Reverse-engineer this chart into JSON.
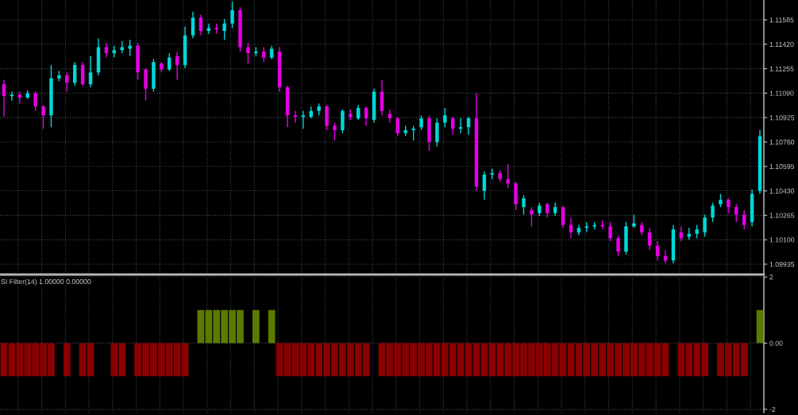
{
  "chart_data": [
    {
      "type": "candlestick",
      "categories": [
        null,
        null,
        null,
        null,
        null,
        null,
        null,
        null,
        null,
        null,
        null,
        null,
        null,
        null,
        null,
        null,
        null,
        null,
        null,
        null,
        null,
        null,
        null,
        null,
        null,
        null,
        null,
        null,
        null,
        null,
        null,
        null,
        null,
        null,
        null,
        null,
        null,
        null,
        null,
        null,
        null,
        null,
        null,
        null,
        null,
        null,
        null,
        null,
        null,
        null,
        null,
        null,
        null,
        null,
        null,
        null,
        null,
        null,
        null,
        null,
        null,
        null,
        null,
        null,
        null,
        null,
        null,
        null,
        null,
        null,
        null,
        null,
        null,
        null,
        null,
        null,
        null,
        null,
        null,
        null,
        null,
        null,
        null,
        null,
        null,
        null,
        null,
        null,
        null,
        null,
        null,
        null,
        null,
        null,
        null,
        null,
        null
      ],
      "ohlc": [
        [
          1.1115,
          1.1118,
          1.1093,
          1.1107
        ],
        [
          1.1107,
          1.111,
          1.1104,
          1.1108
        ],
        [
          1.1108,
          1.111,
          1.1102,
          1.1106
        ],
        [
          1.1106,
          1.1111,
          1.1105,
          1.1109
        ],
        [
          1.1109,
          1.111,
          1.1097,
          1.11
        ],
        [
          1.11,
          1.1101,
          1.1085,
          1.1094
        ],
        [
          1.1094,
          1.1128,
          1.1086,
          1.1119
        ],
        [
          1.1119,
          1.1124,
          1.1117,
          1.1121
        ],
        [
          1.1121,
          1.1123,
          1.111,
          1.1116
        ],
        [
          1.1116,
          1.113,
          1.1114,
          1.1128
        ],
        [
          1.1128,
          1.113,
          1.1114,
          1.1115
        ],
        [
          1.1115,
          1.1134,
          1.1113,
          1.1123
        ],
        [
          1.1123,
          1.1146,
          1.1121,
          1.114
        ],
        [
          1.114,
          1.1143,
          1.1133,
          1.1136
        ],
        [
          1.1136,
          1.1141,
          1.1133,
          1.1138
        ],
        [
          1.1138,
          1.1144,
          1.1136,
          1.114
        ],
        [
          1.1139,
          1.1145,
          1.1134,
          1.1141
        ],
        [
          1.1141,
          1.1143,
          1.1118,
          1.1123
        ],
        [
          1.1125,
          1.1126,
          1.1104,
          1.1112
        ],
        [
          1.1112,
          1.1132,
          1.111,
          1.113
        ],
        [
          1.1129,
          1.113,
          1.1123,
          1.1125
        ],
        [
          1.1125,
          1.1136,
          1.1124,
          1.1133
        ],
        [
          1.1134,
          1.1137,
          1.1118,
          1.1128
        ],
        [
          1.1128,
          1.1154,
          1.1126,
          1.1148
        ],
        [
          1.1148,
          1.1164,
          1.1146,
          1.116
        ],
        [
          1.116,
          1.1162,
          1.1148,
          1.1151
        ],
        [
          1.1151,
          1.1156,
          1.1149,
          1.1153
        ],
        [
          1.1153,
          1.1156,
          1.1149,
          1.1152
        ],
        [
          1.1151,
          1.1159,
          1.1145,
          1.1156
        ],
        [
          1.1156,
          1.1171,
          1.1153,
          1.1165
        ],
        [
          1.1165,
          1.1167,
          1.1137,
          1.114
        ],
        [
          1.114,
          1.1143,
          1.1129,
          1.1136
        ],
        [
          1.1136,
          1.114,
          1.1134,
          1.1137
        ],
        [
          1.1137,
          1.114,
          1.113,
          1.1133
        ],
        [
          1.1133,
          1.1141,
          1.1132,
          1.1139
        ],
        [
          1.1137,
          1.114,
          1.111,
          1.1113
        ],
        [
          1.1113,
          1.1114,
          1.1086,
          1.1094
        ],
        [
          1.1094,
          1.1097,
          1.1089,
          1.1093
        ],
        [
          1.1093,
          1.1097,
          1.1085,
          1.1094
        ],
        [
          1.1093,
          1.11,
          1.1092,
          1.1097
        ],
        [
          1.1097,
          1.1102,
          1.1094,
          1.11
        ],
        [
          1.11,
          1.1101,
          1.1084,
          1.1087
        ],
        [
          1.1087,
          1.1089,
          1.1077,
          1.1084
        ],
        [
          1.1084,
          1.1098,
          1.1082,
          1.1097
        ],
        [
          1.1095,
          1.1098,
          1.1091,
          1.1093
        ],
        [
          1.1092,
          1.1101,
          1.1091,
          1.1099
        ],
        [
          1.1099,
          1.11,
          1.1087,
          1.1092
        ],
        [
          1.1091,
          1.1112,
          1.1089,
          1.111
        ],
        [
          1.111,
          1.1118,
          1.1094,
          1.1097
        ],
        [
          1.1095,
          1.1098,
          1.1089,
          1.1092
        ],
        [
          1.1092,
          1.1093,
          1.108,
          1.1082
        ],
        [
          1.1082,
          1.1087,
          1.108,
          1.1084
        ],
        [
          1.1084,
          1.1087,
          1.1077,
          1.1085
        ],
        [
          1.1086,
          1.1094,
          1.1084,
          1.1092
        ],
        [
          1.1092,
          1.1094,
          1.107,
          1.1076
        ],
        [
          1.1076,
          1.1092,
          1.1073,
          1.1089
        ],
        [
          1.1089,
          1.1099,
          1.1086,
          1.1094
        ],
        [
          1.1092,
          1.1093,
          1.1081,
          1.1085
        ],
        [
          1.1085,
          1.1092,
          1.1082,
          1.1086
        ],
        [
          1.1086,
          1.1093,
          1.1081,
          1.1092
        ],
        [
          1.1092,
          1.1109,
          1.1043,
          1.1046
        ],
        [
          1.1043,
          1.1056,
          1.1037,
          1.1054
        ],
        [
          1.1054,
          1.1058,
          1.1051,
          1.1055
        ],
        [
          1.1055,
          1.1057,
          1.1049,
          1.1051
        ],
        [
          1.1051,
          1.1061,
          1.1045,
          1.1048
        ],
        [
          1.1048,
          1.1049,
          1.103,
          1.1034
        ],
        [
          1.1032,
          1.104,
          1.1027,
          1.1038
        ],
        [
          1.103,
          1.1032,
          1.1019,
          1.1027
        ],
        [
          1.1028,
          1.1035,
          1.1026,
          1.1033
        ],
        [
          1.1034,
          1.1035,
          1.1025,
          1.1028
        ],
        [
          1.1028,
          1.1035,
          1.1026,
          1.1032
        ],
        [
          1.1032,
          1.1033,
          1.1018,
          1.102
        ],
        [
          1.102,
          1.1025,
          1.1011,
          1.1015
        ],
        [
          1.1015,
          1.102,
          1.1013,
          1.1018
        ],
        [
          1.1018,
          1.1022,
          1.1015,
          1.1019
        ],
        [
          1.1019,
          1.1022,
          1.1017,
          1.102
        ],
        [
          1.102,
          1.1023,
          1.1017,
          1.1019
        ],
        [
          1.1019,
          1.1022,
          1.1009,
          1.1011
        ],
        [
          1.1011,
          1.1013,
          1.0999,
          1.1002
        ],
        [
          1.1002,
          1.1022,
          1.1,
          1.1019
        ],
        [
          1.1019,
          1.1027,
          1.1018,
          1.1021
        ],
        [
          1.102,
          1.1022,
          1.1013,
          1.1015
        ],
        [
          1.1015,
          1.1018,
          1.1003,
          1.1006
        ],
        [
          1.1006,
          1.1009,
          1.0996,
          1.0999
        ],
        [
          1.0999,
          1.1003,
          1.0994,
          1.0996
        ],
        [
          1.0996,
          1.102,
          1.0994,
          1.1017
        ],
        [
          1.1015,
          1.1019,
          1.1009,
          1.1011
        ],
        [
          1.1012,
          1.1018,
          1.101,
          1.1014
        ],
        [
          1.1014,
          1.102,
          1.1011,
          1.1017
        ],
        [
          1.1015,
          1.1027,
          1.1012,
          1.1025
        ],
        [
          1.1025,
          1.1035,
          1.1022,
          1.1033
        ],
        [
          1.1034,
          1.1041,
          1.1032,
          1.1037
        ],
        [
          1.1037,
          1.1038,
          1.1028,
          1.1032
        ],
        [
          1.1032,
          1.1034,
          1.1022,
          1.1027
        ],
        [
          1.1027,
          1.103,
          1.1017,
          1.102
        ],
        [
          1.1022,
          1.1044,
          1.1019,
          1.1041
        ],
        [
          1.1043,
          1.1084,
          1.1041,
          1.108
        ]
      ],
      "colors": [
        "#e600e6",
        "#00d8d8",
        "#e600e6",
        "#00d8d8",
        "#e600e6",
        "#e600e6",
        "#00d8d8",
        "#00d8d8",
        "#e600e6",
        "#00d8d8",
        "#e600e6",
        "#00d8d8",
        "#00d8d8",
        "#e600e6",
        "#00d8d8",
        "#00d8d8",
        "#00d8d8",
        "#e600e6",
        "#e600e6",
        "#00d8d8",
        "#e600e6",
        "#00d8d8",
        "#e600e6",
        "#00d8d8",
        "#00d8d8",
        "#e600e6",
        "#00d8d8",
        "#e600e6",
        "#00d8d8",
        "#00d8d8",
        "#e600e6",
        "#e600e6",
        "#00d8d8",
        "#e600e6",
        "#00d8d8",
        "#e600e6",
        "#e600e6",
        "#e600e6",
        "#00d8d8",
        "#00d8d8",
        "#00d8d8",
        "#e600e6",
        "#e600e6",
        "#00d8d8",
        "#e600e6",
        "#00d8d8",
        "#e600e6",
        "#00d8d8",
        "#e600e6",
        "#e600e6",
        "#e600e6",
        "#00d8d8",
        "#00d8d8",
        "#00d8d8",
        "#e600e6",
        "#00d8d8",
        "#00d8d8",
        "#e600e6",
        "#00d8d8",
        "#00d8d8",
        "#e600e6",
        "#00d8d8",
        "#00d8d8",
        "#e600e6",
        "#e600e6",
        "#e600e6",
        "#00d8d8",
        "#e600e6",
        "#00d8d8",
        "#e600e6",
        "#00d8d8",
        "#e600e6",
        "#e600e6",
        "#00d8d8",
        "#00d8d8",
        "#00d8d8",
        "#e600e6",
        "#e600e6",
        "#e600e6",
        "#00d8d8",
        "#00d8d8",
        "#e600e6",
        "#e600e6",
        "#e600e6",
        "#e600e6",
        "#00d8d8",
        "#e600e6",
        "#00d8d8",
        "#00d8d8",
        "#00d8d8",
        "#00d8d8",
        "#00d8d8",
        "#e600e6",
        "#e600e6",
        "#e600e6",
        "#00d8d8",
        "#00d8d8"
      ],
      "ylim": [
        1.09865,
        1.11719
      ],
      "yticks": [
        1.11585,
        {
          "value": 1.1142,
          "label": "1.11420"
        },
        1.11255,
        {
          "value": 1.1109,
          "label": "1.11090"
        },
        1.10925,
        {
          "value": 1.1076,
          "label": "1.10760"
        },
        1.10595,
        {
          "value": 1.1043,
          "label": "1.10430"
        },
        1.10265,
        {
          "value": 1.101,
          "label": "1.10100"
        },
        1.09935
      ],
      "grid": true,
      "tick_labels": "y"
    },
    {
      "type": "bar",
      "title": "SI Filter(14) 1.00000 0.00000",
      "categories": [
        null,
        null,
        null,
        null,
        null,
        null,
        null,
        null,
        null,
        null,
        null,
        null,
        null,
        null,
        null,
        null,
        null,
        null,
        null,
        null,
        null,
        null,
        null,
        null,
        null,
        null,
        null,
        null,
        null,
        null,
        null,
        null,
        null,
        null,
        null,
        null,
        null,
        null,
        null,
        null,
        null,
        null,
        null,
        null,
        null,
        null,
        null,
        null,
        null,
        null,
        null,
        null,
        null,
        null,
        null,
        null,
        null,
        null,
        null,
        null,
        null,
        null,
        null,
        null,
        null,
        null,
        null,
        null,
        null,
        null,
        null,
        null,
        null,
        null,
        null,
        null,
        null,
        null,
        null,
        null,
        null,
        null,
        null,
        null,
        null,
        null,
        null,
        null,
        null,
        null,
        null,
        null,
        null,
        null,
        null,
        null,
        null
      ],
      "values": [
        -1,
        -1,
        -1,
        -1,
        -1,
        -1,
        -1,
        null,
        -1,
        null,
        -1,
        -1,
        null,
        null,
        -1,
        -1,
        null,
        -1,
        -1,
        -1,
        -1,
        -1,
        -1,
        -1,
        null,
        1,
        1,
        1,
        1,
        1,
        1,
        null,
        1,
        null,
        1,
        -1,
        -1,
        -1,
        -1,
        -1,
        -1,
        -1,
        -1,
        -1,
        -1,
        -1,
        -1,
        null,
        -1,
        -1,
        -1,
        -1,
        -1,
        -1,
        -1,
        -1,
        -1,
        -1,
        -1,
        -1,
        -1,
        -1,
        -1,
        -1,
        -1,
        -1,
        -1,
        -1,
        -1,
        -1,
        -1,
        -1,
        -1,
        -1,
        -1,
        -1,
        -1,
        -1,
        -1,
        -1,
        -1,
        -1,
        -1,
        -1,
        -1,
        null,
        -1,
        -1,
        -1,
        -1,
        null,
        -1,
        -1,
        -1,
        -1,
        null,
        1
      ],
      "colors": [
        "#8b0000",
        "#8b0000",
        "#8b0000",
        "#8b0000",
        "#8b0000",
        "#8b0000",
        "#8b0000",
        null,
        "#8b0000",
        null,
        "#8b0000",
        "#8b0000",
        null,
        null,
        "#8b0000",
        "#8b0000",
        null,
        "#8b0000",
        "#8b0000",
        "#8b0000",
        "#8b0000",
        "#8b0000",
        "#8b0000",
        "#8b0000",
        null,
        "#5c7a00",
        "#5c7a00",
        "#5c7a00",
        "#5c7a00",
        "#5c7a00",
        "#5c7a00",
        null,
        "#5c7a00",
        null,
        "#5c7a00",
        "#8b0000",
        "#8b0000",
        "#8b0000",
        "#8b0000",
        "#8b0000",
        "#8b0000",
        "#8b0000",
        "#8b0000",
        "#8b0000",
        "#8b0000",
        "#8b0000",
        "#8b0000",
        null,
        "#8b0000",
        "#8b0000",
        "#8b0000",
        "#8b0000",
        "#8b0000",
        "#8b0000",
        "#8b0000",
        "#8b0000",
        "#8b0000",
        "#8b0000",
        "#8b0000",
        "#8b0000",
        "#8b0000",
        "#8b0000",
        "#8b0000",
        "#8b0000",
        "#8b0000",
        "#8b0000",
        "#8b0000",
        "#8b0000",
        "#8b0000",
        "#8b0000",
        "#8b0000",
        "#8b0000",
        "#8b0000",
        "#8b0000",
        "#8b0000",
        "#8b0000",
        "#8b0000",
        "#8b0000",
        "#8b0000",
        "#8b0000",
        "#8b0000",
        "#8b0000",
        "#8b0000",
        "#8b0000",
        "#8b0000",
        null,
        "#8b0000",
        "#8b0000",
        "#8b0000",
        "#8b0000",
        null,
        "#8b0000",
        "#8b0000",
        "#8b0000",
        "#8b0000",
        null,
        "#5c7a00"
      ],
      "ylim": [
        -2.1,
        2.0
      ],
      "yticks": [
        2,
        {
          "value": 0,
          "label": "0.00"
        },
        -2
      ],
      "grid": true,
      "tick_labels": "y"
    }
  ]
}
